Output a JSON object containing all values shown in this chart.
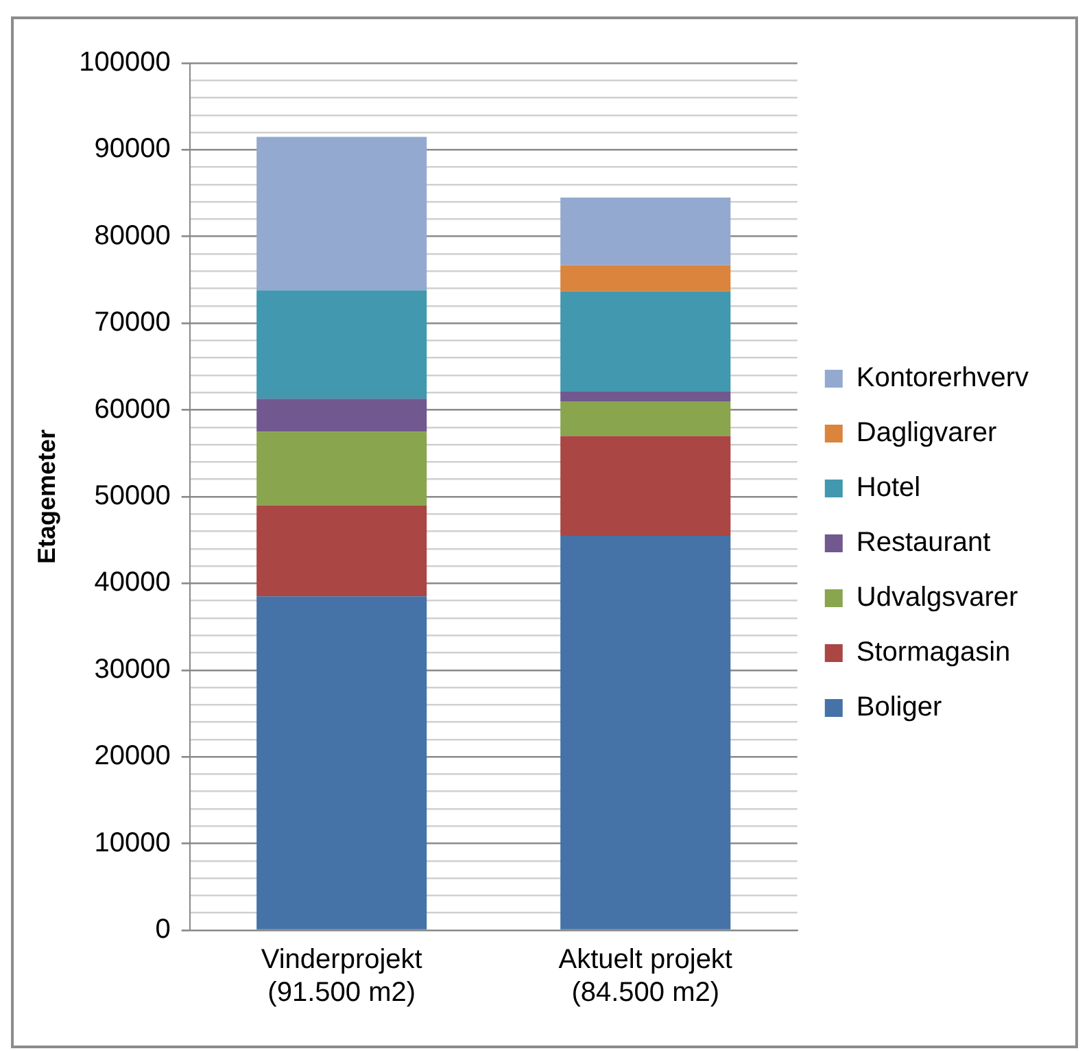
{
  "chart_data": {
    "type": "bar",
    "stacked": true,
    "ylabel": "Etagemeter",
    "categories": [
      "Vinderprojekt\n(91.500 m2)",
      "Aktuelt projekt\n(84.500 m2)"
    ],
    "series": [
      {
        "name": "Boliger",
        "color": "#4572a7",
        "values": [
          38500,
          45500
        ]
      },
      {
        "name": "Stormagasin",
        "color": "#aa4643",
        "values": [
          10500,
          11500
        ]
      },
      {
        "name": "Udvalgsvarer",
        "color": "#89a54e",
        "values": [
          8500,
          4000
        ]
      },
      {
        "name": "Restaurant",
        "color": "#71588f",
        "values": [
          3800,
          1100
        ]
      },
      {
        "name": "Hotel",
        "color": "#4198af",
        "values": [
          12500,
          11600
        ]
      },
      {
        "name": "Dagligvarer",
        "color": "#db843d",
        "values": [
          null,
          3000
        ]
      },
      {
        "name": "Kontorerhverv",
        "color": "#93a9cf",
        "values": [
          17700,
          7800
        ]
      }
    ],
    "ylim": [
      0,
      100000
    ],
    "yticks": [
      0,
      {
        "value": 2000,
        "label": null
      },
      {
        "value": 4000,
        "label": null
      },
      {
        "value": 6000,
        "label": null
      },
      {
        "value": 8000,
        "label": null
      },
      10000,
      {
        "value": 12000,
        "label": null
      },
      {
        "value": 14000,
        "label": null
      },
      {
        "value": 16000,
        "label": null
      },
      {
        "value": 18000,
        "label": null
      },
      20000,
      {
        "value": 22000,
        "label": null
      },
      {
        "value": 24000,
        "label": null
      },
      {
        "value": 26000,
        "label": null
      },
      {
        "value": 28000,
        "label": null
      },
      30000,
      {
        "value": 32000,
        "label": null
      },
      {
        "value": 34000,
        "label": null
      },
      {
        "value": 36000,
        "label": null
      },
      {
        "value": 38000,
        "label": null
      },
      40000,
      {
        "value": 42000,
        "label": null
      },
      {
        "value": 44000,
        "label": null
      },
      {
        "value": 46000,
        "label": null
      },
      {
        "value": 48000,
        "label": null
      },
      50000,
      {
        "value": 52000,
        "label": null
      },
      {
        "value": 54000,
        "label": null
      },
      {
        "value": 56000,
        "label": null
      },
      {
        "value": 58000,
        "label": null
      },
      60000,
      {
        "value": 62000,
        "label": null
      },
      {
        "value": 64000,
        "label": null
      },
      {
        "value": 66000,
        "label": null
      },
      {
        "value": 68000,
        "label": null
      },
      70000,
      {
        "value": 72000,
        "label": null
      },
      {
        "value": 74000,
        "label": null
      },
      {
        "value": 76000,
        "label": null
      },
      {
        "value": 78000,
        "label": null
      },
      80000,
      {
        "value": 82000,
        "label": null
      },
      {
        "value": 84000,
        "label": null
      },
      {
        "value": 86000,
        "label": null
      },
      {
        "value": 88000,
        "label": null
      },
      90000,
      {
        "value": 92000,
        "label": null
      },
      {
        "value": 94000,
        "label": null
      },
      {
        "value": 96000,
        "label": null
      },
      {
        "value": 98000,
        "label": null
      },
      100000
    ],
    "grid": "y",
    "legend": "right"
  }
}
